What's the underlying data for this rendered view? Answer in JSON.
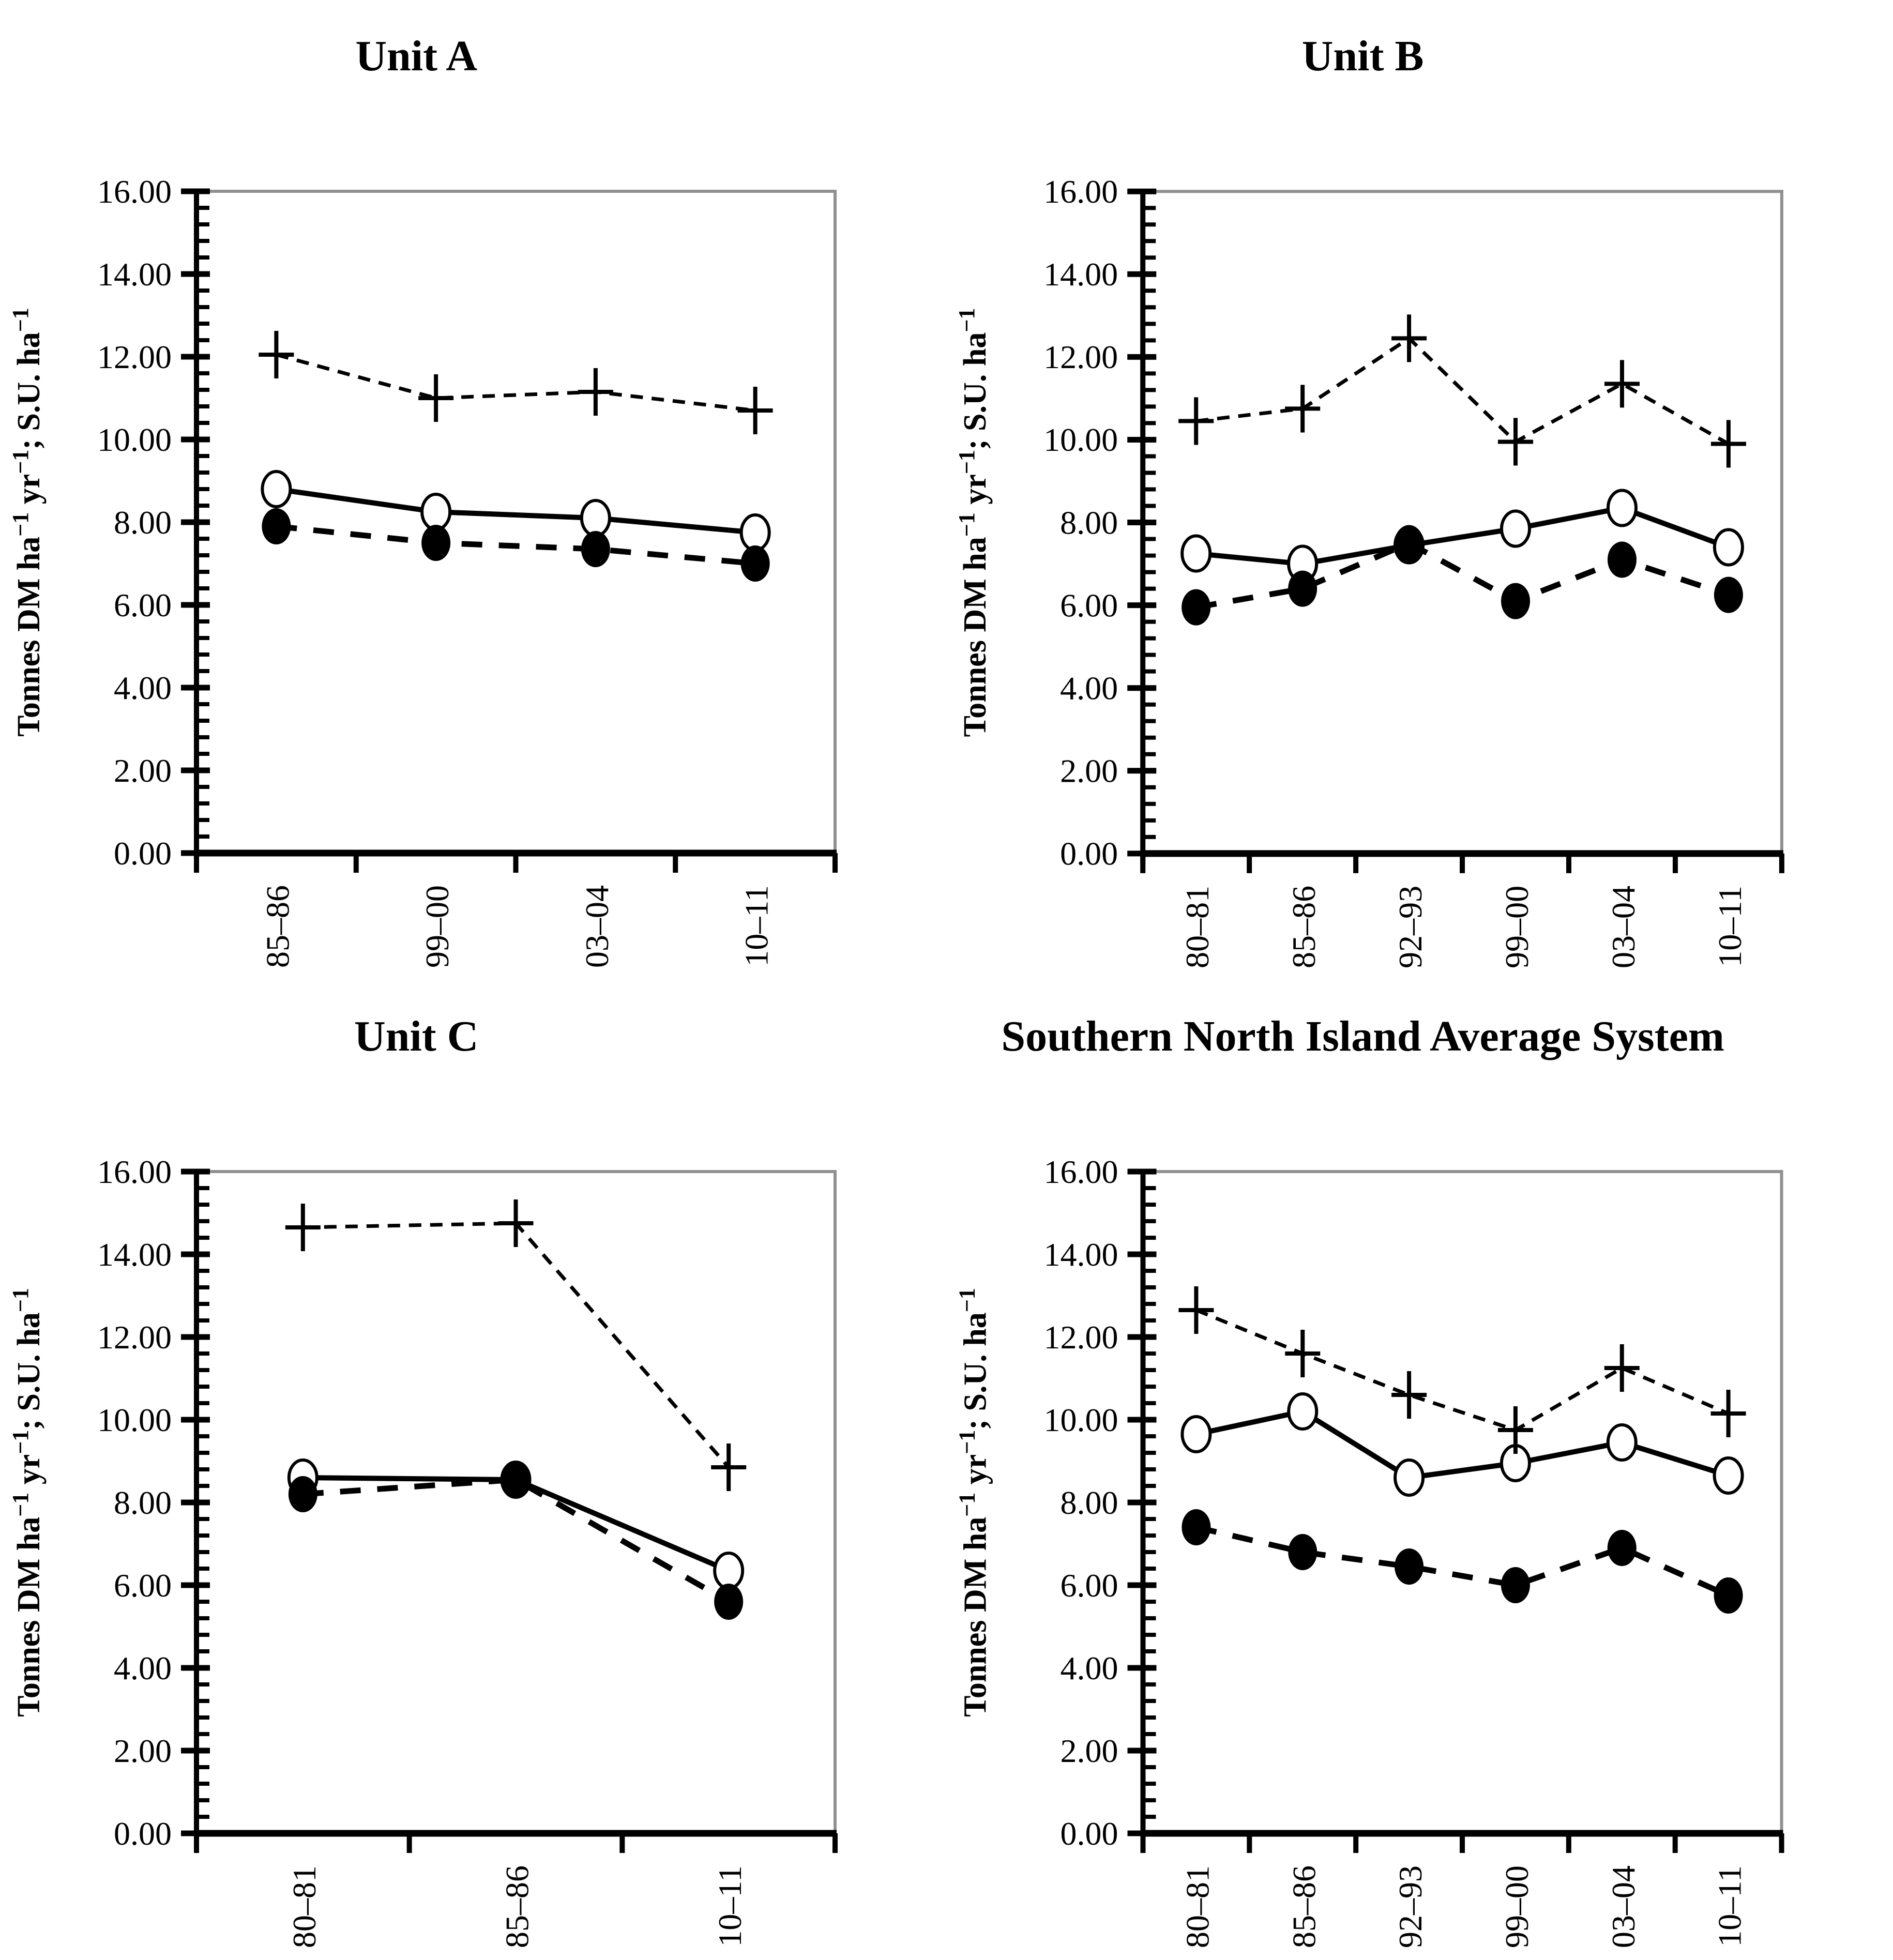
{
  "page": {
    "background": "#ffffff",
    "text_color": "#000000"
  },
  "charts_common": {
    "ylabel": "Tonnes DM ha⁻¹ yr⁻¹; S.U. ha⁻¹",
    "ylim": [
      0,
      16
    ],
    "ytick_step": 2,
    "y_minor_ticks_between_major": 4,
    "tick_label_decimals": 2,
    "grid": false,
    "legend_position": "none",
    "axis_color": "#000000",
    "frame_color": "#909090",
    "series_color": "#000000",
    "marker_fill_open": "#ffffff",
    "marker_fill_filled": "#000000"
  },
  "chart_data": [
    {
      "type": "line",
      "title": "Unit A",
      "xlabel": "",
      "categories": [
        "85–86",
        "99–00",
        "03–04",
        "10–11"
      ],
      "series": [
        {
          "name": "plus-dashed",
          "marker": "plus",
          "line": "dashed",
          "values": [
            12.05,
            11.0,
            11.15,
            10.7
          ]
        },
        {
          "name": "open-circle-solid",
          "marker": "open-circle",
          "line": "solid",
          "values": [
            8.8,
            8.25,
            8.1,
            7.75
          ]
        },
        {
          "name": "filled-circle-dashed",
          "marker": "filled-circle",
          "line": "dashed",
          "values": [
            7.9,
            7.5,
            7.35,
            7.0
          ]
        }
      ]
    },
    {
      "type": "line",
      "title": "Unit B",
      "xlabel": "",
      "categories": [
        "80–81",
        "85–86",
        "92–93",
        "99–00",
        "03–04",
        "10–11"
      ],
      "series": [
        {
          "name": "plus-dashed",
          "marker": "plus",
          "line": "dashed",
          "values": [
            10.45,
            10.75,
            12.45,
            9.95,
            11.35,
            9.9
          ]
        },
        {
          "name": "open-circle-solid",
          "marker": "open-circle",
          "line": "solid",
          "values": [
            7.25,
            7.0,
            7.45,
            7.85,
            8.35,
            7.4
          ]
        },
        {
          "name": "filled-circle-dashed",
          "marker": "filled-circle",
          "line": "dashed",
          "values": [
            5.95,
            6.4,
            7.5,
            6.1,
            7.1,
            6.25
          ]
        }
      ]
    },
    {
      "type": "line",
      "title": "Unit C",
      "xlabel": "",
      "categories": [
        "80–81",
        "85–86",
        "10–11"
      ],
      "series": [
        {
          "name": "plus-dashed",
          "marker": "plus",
          "line": "dashed",
          "values": [
            14.65,
            14.75,
            8.85
          ]
        },
        {
          "name": "open-circle-solid",
          "marker": "open-circle",
          "line": "solid",
          "values": [
            8.6,
            8.55,
            6.35
          ]
        },
        {
          "name": "filled-circle-dashed",
          "marker": "filled-circle",
          "line": "dashed",
          "values": [
            8.2,
            8.55,
            5.6
          ]
        }
      ]
    },
    {
      "type": "line",
      "title": "Southern North Island Average System",
      "xlabel": "",
      "categories": [
        "80–81",
        "85–86",
        "92–93",
        "99–00",
        "03–04",
        "10–11"
      ],
      "series": [
        {
          "name": "plus-dashed",
          "marker": "plus",
          "line": "dashed",
          "values": [
            12.65,
            11.6,
            10.6,
            9.75,
            11.25,
            10.15
          ]
        },
        {
          "name": "open-circle-solid",
          "marker": "open-circle",
          "line": "solid",
          "values": [
            9.65,
            10.2,
            8.6,
            8.95,
            9.45,
            8.65
          ]
        },
        {
          "name": "filled-circle-dashed",
          "marker": "filled-circle",
          "line": "dashed",
          "values": [
            7.4,
            6.8,
            6.45,
            6.0,
            6.9,
            5.75
          ]
        }
      ]
    }
  ]
}
